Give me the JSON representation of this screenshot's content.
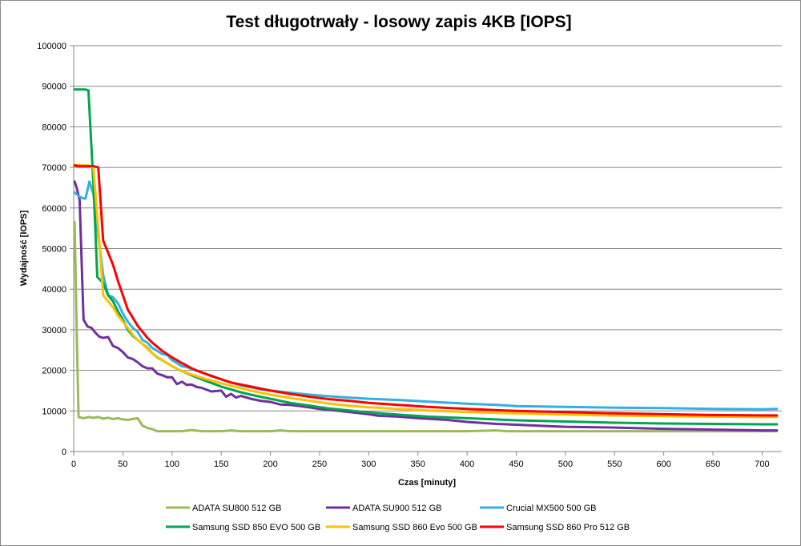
{
  "chart_data": {
    "type": "line",
    "title": "Test długotrwały - losowy zapis 4KB [IOPS]",
    "xlabel": "Czas [minuty]",
    "ylabel": "Wydajność [IOPS]",
    "xlim": [
      0,
      720
    ],
    "ylim": [
      0,
      100000
    ],
    "xticks": [
      0,
      50,
      100,
      150,
      200,
      250,
      300,
      350,
      400,
      450,
      500,
      550,
      600,
      650,
      700
    ],
    "yticks": [
      0,
      10000,
      20000,
      30000,
      40000,
      50000,
      60000,
      70000,
      80000,
      90000,
      100000
    ],
    "grid": "horizontal",
    "legend_position": "bottom",
    "series": [
      {
        "name": "ADATA SU800 512 GB",
        "color": "#9bbb59",
        "points": [
          [
            1,
            56500
          ],
          [
            3,
            30000
          ],
          [
            5,
            8500
          ],
          [
            10,
            8200
          ],
          [
            15,
            8500
          ],
          [
            20,
            8300
          ],
          [
            25,
            8500
          ],
          [
            30,
            8100
          ],
          [
            35,
            8300
          ],
          [
            40,
            8000
          ],
          [
            45,
            8200
          ],
          [
            50,
            7900
          ],
          [
            55,
            7800
          ],
          [
            60,
            8000
          ],
          [
            65,
            8200
          ],
          [
            70,
            6400
          ],
          [
            75,
            5800
          ],
          [
            80,
            5500
          ],
          [
            85,
            5000
          ],
          [
            90,
            5000
          ],
          [
            100,
            5000
          ],
          [
            110,
            5000
          ],
          [
            120,
            5300
          ],
          [
            130,
            5000
          ],
          [
            140,
            5000
          ],
          [
            150,
            5000
          ],
          [
            160,
            5200
          ],
          [
            170,
            5000
          ],
          [
            200,
            5000
          ],
          [
            210,
            5200
          ],
          [
            220,
            5000
          ],
          [
            300,
            5000
          ],
          [
            400,
            5000
          ],
          [
            430,
            5200
          ],
          [
            440,
            5000
          ],
          [
            500,
            5000
          ],
          [
            600,
            5000
          ],
          [
            650,
            5000
          ],
          [
            700,
            5000
          ],
          [
            715,
            5000
          ]
        ]
      },
      {
        "name": "ADATA SU900 512 GB",
        "color": "#7030a0",
        "points": [
          [
            1,
            66500
          ],
          [
            3,
            65000
          ],
          [
            6,
            62000
          ],
          [
            10,
            32500
          ],
          [
            14,
            30800
          ],
          [
            18,
            30500
          ],
          [
            22,
            29300
          ],
          [
            26,
            28300
          ],
          [
            30,
            28000
          ],
          [
            35,
            28200
          ],
          [
            40,
            26000
          ],
          [
            45,
            25500
          ],
          [
            50,
            24500
          ],
          [
            55,
            23200
          ],
          [
            60,
            22800
          ],
          [
            65,
            22000
          ],
          [
            70,
            21000
          ],
          [
            75,
            20500
          ],
          [
            80,
            20500
          ],
          [
            85,
            19200
          ],
          [
            90,
            18800
          ],
          [
            95,
            18300
          ],
          [
            100,
            18300
          ],
          [
            105,
            16600
          ],
          [
            110,
            17200
          ],
          [
            115,
            16400
          ],
          [
            120,
            16500
          ],
          [
            125,
            15900
          ],
          [
            130,
            15700
          ],
          [
            140,
            14800
          ],
          [
            150,
            15000
          ],
          [
            155,
            13500
          ],
          [
            160,
            14200
          ],
          [
            165,
            13300
          ],
          [
            170,
            13700
          ],
          [
            180,
            13000
          ],
          [
            190,
            12500
          ],
          [
            200,
            12200
          ],
          [
            210,
            11600
          ],
          [
            220,
            11500
          ],
          [
            230,
            11200
          ],
          [
            250,
            10500
          ],
          [
            270,
            10000
          ],
          [
            300,
            9200
          ],
          [
            310,
            8800
          ],
          [
            330,
            8600
          ],
          [
            350,
            8200
          ],
          [
            380,
            7800
          ],
          [
            400,
            7300
          ],
          [
            430,
            6800
          ],
          [
            450,
            6600
          ],
          [
            480,
            6300
          ],
          [
            500,
            6100
          ],
          [
            550,
            5900
          ],
          [
            600,
            5600
          ],
          [
            650,
            5400
          ],
          [
            700,
            5200
          ],
          [
            715,
            5200
          ]
        ]
      },
      {
        "name": "Crucial MX500 500 GB",
        "color": "#31b0e6",
        "points": [
          [
            1,
            63800
          ],
          [
            5,
            63000
          ],
          [
            8,
            62500
          ],
          [
            12,
            62300
          ],
          [
            16,
            66500
          ],
          [
            20,
            63500
          ],
          [
            25,
            53000
          ],
          [
            30,
            43500
          ],
          [
            35,
            38500
          ],
          [
            40,
            38000
          ],
          [
            45,
            36500
          ],
          [
            50,
            34000
          ],
          [
            55,
            32000
          ],
          [
            60,
            30500
          ],
          [
            65,
            29500
          ],
          [
            70,
            27500
          ],
          [
            75,
            26800
          ],
          [
            80,
            25500
          ],
          [
            85,
            24800
          ],
          [
            90,
            24000
          ],
          [
            95,
            23800
          ],
          [
            100,
            22500
          ],
          [
            105,
            21800
          ],
          [
            110,
            21000
          ],
          [
            115,
            20800
          ],
          [
            120,
            20300
          ],
          [
            130,
            19500
          ],
          [
            140,
            18700
          ],
          [
            150,
            17800
          ],
          [
            160,
            17000
          ],
          [
            170,
            16300
          ],
          [
            180,
            15800
          ],
          [
            190,
            15300
          ],
          [
            200,
            15000
          ],
          [
            220,
            14500
          ],
          [
            240,
            14000
          ],
          [
            260,
            13600
          ],
          [
            280,
            13300
          ],
          [
            300,
            13000
          ],
          [
            330,
            12700
          ],
          [
            360,
            12300
          ],
          [
            400,
            11800
          ],
          [
            430,
            11500
          ],
          [
            450,
            11200
          ],
          [
            500,
            11000
          ],
          [
            550,
            10800
          ],
          [
            600,
            10700
          ],
          [
            650,
            10500
          ],
          [
            700,
            10400
          ],
          [
            715,
            10500
          ]
        ]
      },
      {
        "name": "Samsung SSD 850 EVO 500 GB",
        "color": "#00a650",
        "points": [
          [
            1,
            89200
          ],
          [
            8,
            89200
          ],
          [
            12,
            89200
          ],
          [
            15,
            89000
          ],
          [
            20,
            66000
          ],
          [
            24,
            43000
          ],
          [
            30,
            41500
          ],
          [
            35,
            38500
          ],
          [
            40,
            37000
          ],
          [
            45,
            34500
          ],
          [
            50,
            32500
          ],
          [
            55,
            30000
          ],
          [
            60,
            28500
          ],
          [
            65,
            27500
          ],
          [
            70,
            26500
          ],
          [
            75,
            25500
          ],
          [
            80,
            24200
          ],
          [
            85,
            23200
          ],
          [
            90,
            22500
          ],
          [
            95,
            21800
          ],
          [
            100,
            21000
          ],
          [
            110,
            19800
          ],
          [
            120,
            18800
          ],
          [
            130,
            17800
          ],
          [
            140,
            16900
          ],
          [
            150,
            16000
          ],
          [
            160,
            15300
          ],
          [
            170,
            14600
          ],
          [
            180,
            14000
          ],
          [
            190,
            13500
          ],
          [
            200,
            13000
          ],
          [
            220,
            12000
          ],
          [
            240,
            11300
          ],
          [
            260,
            10600
          ],
          [
            280,
            10100
          ],
          [
            300,
            9600
          ],
          [
            330,
            9100
          ],
          [
            360,
            8600
          ],
          [
            400,
            8200
          ],
          [
            450,
            7700
          ],
          [
            500,
            7400
          ],
          [
            550,
            7100
          ],
          [
            600,
            6900
          ],
          [
            650,
            6800
          ],
          [
            700,
            6700
          ],
          [
            715,
            6700
          ]
        ]
      },
      {
        "name": "Samsung SSD 860 Evo 500 GB",
        "color": "#ffc000",
        "points": [
          [
            1,
            70500
          ],
          [
            5,
            70600
          ],
          [
            10,
            70500
          ],
          [
            15,
            70500
          ],
          [
            20,
            70000
          ],
          [
            25,
            55000
          ],
          [
            30,
            38500
          ],
          [
            35,
            37000
          ],
          [
            40,
            35500
          ],
          [
            45,
            33500
          ],
          [
            50,
            32000
          ],
          [
            55,
            30500
          ],
          [
            60,
            28800
          ],
          [
            65,
            27500
          ],
          [
            70,
            26500
          ],
          [
            75,
            25300
          ],
          [
            80,
            24200
          ],
          [
            85,
            23300
          ],
          [
            90,
            22500
          ],
          [
            95,
            21800
          ],
          [
            100,
            21000
          ],
          [
            110,
            19800
          ],
          [
            120,
            19000
          ],
          [
            130,
            18200
          ],
          [
            140,
            17500
          ],
          [
            150,
            16800
          ],
          [
            160,
            16200
          ],
          [
            170,
            15600
          ],
          [
            180,
            15000
          ],
          [
            190,
            14500
          ],
          [
            200,
            14000
          ],
          [
            220,
            13200
          ],
          [
            240,
            12500
          ],
          [
            260,
            11800
          ],
          [
            280,
            11300
          ],
          [
            300,
            10900
          ],
          [
            330,
            10500
          ],
          [
            360,
            10100
          ],
          [
            400,
            9700
          ],
          [
            450,
            9400
          ],
          [
            500,
            9100
          ],
          [
            550,
            8900
          ],
          [
            600,
            8700
          ],
          [
            650,
            8600
          ],
          [
            700,
            8500
          ],
          [
            715,
            8500
          ]
        ]
      },
      {
        "name": "Samsung SSD 860 Pro 512 GB",
        "color": "#ff0000",
        "points": [
          [
            1,
            70500
          ],
          [
            5,
            70300
          ],
          [
            10,
            70300
          ],
          [
            15,
            70300
          ],
          [
            20,
            70300
          ],
          [
            25,
            70000
          ],
          [
            30,
            52000
          ],
          [
            35,
            49000
          ],
          [
            40,
            46000
          ],
          [
            45,
            42000
          ],
          [
            50,
            38500
          ],
          [
            55,
            35000
          ],
          [
            60,
            33000
          ],
          [
            65,
            31000
          ],
          [
            70,
            29500
          ],
          [
            75,
            28000
          ],
          [
            80,
            26800
          ],
          [
            85,
            25800
          ],
          [
            90,
            24800
          ],
          [
            95,
            24000
          ],
          [
            100,
            23200
          ],
          [
            110,
            21800
          ],
          [
            120,
            20500
          ],
          [
            130,
            19500
          ],
          [
            140,
            18600
          ],
          [
            150,
            17800
          ],
          [
            160,
            17000
          ],
          [
            170,
            16500
          ],
          [
            180,
            16000
          ],
          [
            190,
            15500
          ],
          [
            200,
            15000
          ],
          [
            220,
            14200
          ],
          [
            240,
            13500
          ],
          [
            260,
            12900
          ],
          [
            280,
            12500
          ],
          [
            300,
            12000
          ],
          [
            330,
            11500
          ],
          [
            360,
            11000
          ],
          [
            400,
            10500
          ],
          [
            450,
            10000
          ],
          [
            500,
            9700
          ],
          [
            550,
            9400
          ],
          [
            600,
            9200
          ],
          [
            650,
            9000
          ],
          [
            700,
            8900
          ],
          [
            715,
            8900
          ]
        ]
      }
    ]
  }
}
